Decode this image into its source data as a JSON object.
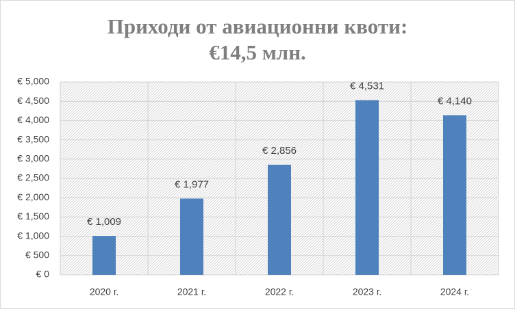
{
  "chart_data": {
    "type": "bar",
    "title": [
      "Приходи от авиационни квоти:",
      "€14,5 млн."
    ],
    "categories": [
      "2020 г.",
      "2021 г.",
      "2022 г.",
      "2023 г.",
      "2024 г."
    ],
    "values": [
      1009,
      1977,
      2856,
      4531,
      4140
    ],
    "value_labels": [
      "€ 1,009",
      "€ 1,977",
      "€ 2,856",
      "€ 4,531",
      "€ 4,140"
    ],
    "color": "#4f81bd",
    "ylim": [
      0,
      5000
    ],
    "yticks": [
      {
        "value": 0,
        "label": "€ 0"
      },
      {
        "value": 500,
        "label": "€ 500"
      },
      {
        "value": 1000,
        "label": "€ 1,000"
      },
      {
        "value": 1500,
        "label": "€ 1,500"
      },
      {
        "value": 2000,
        "label": "€ 2,000"
      },
      {
        "value": 2500,
        "label": "€ 2,500"
      },
      {
        "value": 3000,
        "label": "€ 3,000"
      },
      {
        "value": 3500,
        "label": "€ 3,500"
      },
      {
        "value": 4000,
        "label": "€ 4,000"
      },
      {
        "value": 4500,
        "label": "€ 4,500"
      },
      {
        "value": 5000,
        "label": "€ 5,000"
      }
    ],
    "grid": true
  }
}
